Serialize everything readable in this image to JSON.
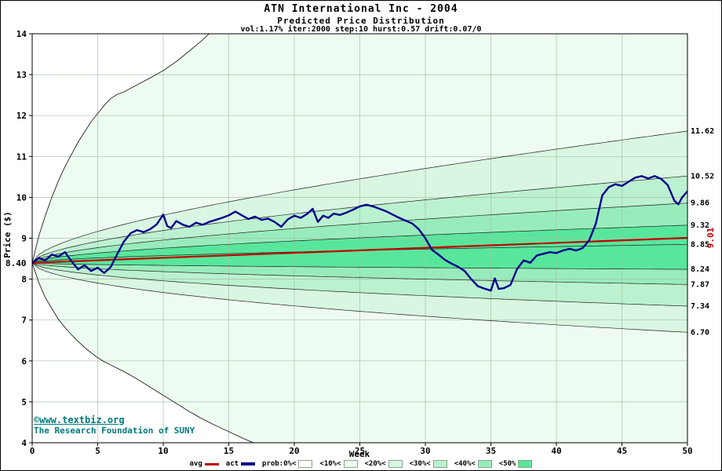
{
  "header": {
    "title": "ATN International Inc - 2004",
    "subtitle": "Predicted Price Distribution",
    "params": "vol:1.17% iter:2000 step:10 hurst:0.57 drift:0.07/0"
  },
  "footer": {
    "copyright": "©www.textbiz.org",
    "org": "The Research Foundation of SUNY"
  },
  "legend": {
    "avg_label": "avg",
    "act_label": "act",
    "prob_labels": [
      "prob:0%<",
      "<10%<",
      "<20%<",
      "<30%<",
      "<40%<",
      "<50%"
    ],
    "avg_color": "#C00000",
    "act_color": "#00008B",
    "band_colors": [
      "#FFFFFF",
      "#EEFBF1",
      "#D8F6E1",
      "#BBF1D0",
      "#98ECBC",
      "#58E69C"
    ]
  },
  "chart_data": {
    "type": "area",
    "subtype": "fan-chart-with-actual-and-average-lines",
    "title": "ATN International Inc - 2004",
    "subtitle": "Predicted Price Distribution",
    "xlabel": "Week",
    "ylabel": "Price ($)",
    "xlim": [
      0,
      50
    ],
    "ylim": [
      4,
      14
    ],
    "xticks": [
      0,
      5,
      10,
      15,
      20,
      25,
      30,
      35,
      40,
      45,
      50
    ],
    "yticks": [
      4,
      5,
      6,
      7,
      8,
      9,
      10,
      11,
      12,
      13,
      14
    ],
    "grid": true,
    "legend_position": "bottom",
    "start_price": 8.4,
    "start_label": "8.40",
    "avg_end": 9.01,
    "avg_end_label": "9.01",
    "hurst_exponent": 0.57,
    "percentile_ends": [
      11.62,
      10.52,
      9.86,
      9.32,
      8.85,
      8.24,
      7.87,
      7.34,
      6.7
    ],
    "right_labels": [
      "11.62",
      "10.52",
      "9.86",
      "9.32",
      "8.85",
      "8.24",
      "7.87",
      "7.34",
      "6.70"
    ],
    "band_pairs": [
      {
        "hi": 11.62,
        "lo": 6.7,
        "color_index": 2
      },
      {
        "hi": 10.52,
        "lo": 7.34,
        "color_index": 3
      },
      {
        "hi": 9.86,
        "lo": 7.87,
        "color_index": 4
      },
      {
        "hi": 9.32,
        "lo": 8.24,
        "color_index": 5
      }
    ],
    "avg_series": [
      [
        0,
        8.4
      ],
      [
        50,
        9.01
      ]
    ],
    "max_envelope": [
      [
        0,
        8.4
      ],
      [
        0.5,
        9.05
      ],
      [
        1,
        9.55
      ],
      [
        1.5,
        10.0
      ],
      [
        2,
        10.4
      ],
      [
        2.5,
        10.75
      ],
      [
        3,
        11.05
      ],
      [
        3.5,
        11.35
      ],
      [
        4,
        11.6
      ],
      [
        4.5,
        11.85
      ],
      [
        5,
        12.05
      ],
      [
        5.5,
        12.25
      ],
      [
        6,
        12.42
      ],
      [
        6.5,
        12.52
      ],
      [
        7,
        12.58
      ],
      [
        8,
        12.75
      ],
      [
        9,
        12.92
      ],
      [
        10,
        13.1
      ],
      [
        11,
        13.32
      ],
      [
        12,
        13.58
      ],
      [
        13,
        13.85
      ],
      [
        14,
        14.15
      ],
      [
        15,
        14.4
      ]
    ],
    "min_envelope": [
      [
        0,
        8.4
      ],
      [
        0.5,
        7.92
      ],
      [
        1,
        7.55
      ],
      [
        1.5,
        7.28
      ],
      [
        2,
        7.02
      ],
      [
        2.5,
        6.82
      ],
      [
        3,
        6.64
      ],
      [
        3.5,
        6.48
      ],
      [
        4,
        6.33
      ],
      [
        4.5,
        6.2
      ],
      [
        5,
        6.08
      ],
      [
        5.5,
        5.98
      ],
      [
        6,
        5.9
      ],
      [
        7,
        5.74
      ],
      [
        8,
        5.56
      ],
      [
        9,
        5.36
      ],
      [
        10,
        5.16
      ],
      [
        11,
        4.96
      ],
      [
        12,
        4.76
      ],
      [
        13,
        4.58
      ],
      [
        14,
        4.42
      ],
      [
        15,
        4.27
      ],
      [
        16,
        4.12
      ],
      [
        17,
        3.98
      ],
      [
        18,
        3.9
      ],
      [
        20,
        3.8
      ]
    ],
    "act_series": [
      [
        0,
        8.4
      ],
      [
        0.5,
        8.52
      ],
      [
        1,
        8.46
      ],
      [
        1.5,
        8.6
      ],
      [
        2,
        8.55
      ],
      [
        2.5,
        8.66
      ],
      [
        3,
        8.44
      ],
      [
        3.5,
        8.24
      ],
      [
        4,
        8.34
      ],
      [
        4.5,
        8.2
      ],
      [
        5,
        8.28
      ],
      [
        5.5,
        8.15
      ],
      [
        6,
        8.3
      ],
      [
        6.5,
        8.62
      ],
      [
        7,
        8.92
      ],
      [
        7.5,
        9.12
      ],
      [
        8,
        9.2
      ],
      [
        8.5,
        9.15
      ],
      [
        9,
        9.22
      ],
      [
        9.5,
        9.34
      ],
      [
        10,
        9.58
      ],
      [
        10.3,
        9.3
      ],
      [
        10.6,
        9.25
      ],
      [
        11,
        9.42
      ],
      [
        11.5,
        9.33
      ],
      [
        12,
        9.28
      ],
      [
        12.5,
        9.38
      ],
      [
        13,
        9.33
      ],
      [
        13.5,
        9.4
      ],
      [
        14,
        9.45
      ],
      [
        14.5,
        9.5
      ],
      [
        15,
        9.56
      ],
      [
        15.5,
        9.65
      ],
      [
        16,
        9.56
      ],
      [
        16.5,
        9.47
      ],
      [
        17,
        9.53
      ],
      [
        17.5,
        9.45
      ],
      [
        18,
        9.48
      ],
      [
        18.5,
        9.4
      ],
      [
        19,
        9.28
      ],
      [
        19.5,
        9.46
      ],
      [
        20,
        9.55
      ],
      [
        20.5,
        9.5
      ],
      [
        21,
        9.6
      ],
      [
        21.4,
        9.72
      ],
      [
        21.8,
        9.4
      ],
      [
        22.2,
        9.55
      ],
      [
        22.6,
        9.5
      ],
      [
        23,
        9.6
      ],
      [
        23.5,
        9.57
      ],
      [
        24,
        9.63
      ],
      [
        24.5,
        9.7
      ],
      [
        25,
        9.78
      ],
      [
        25.5,
        9.82
      ],
      [
        26,
        9.78
      ],
      [
        26.5,
        9.72
      ],
      [
        27,
        9.66
      ],
      [
        27.5,
        9.58
      ],
      [
        28,
        9.5
      ],
      [
        28.5,
        9.43
      ],
      [
        29,
        9.36
      ],
      [
        29.5,
        9.22
      ],
      [
        30,
        9.0
      ],
      [
        30.5,
        8.72
      ],
      [
        31,
        8.6
      ],
      [
        31.5,
        8.47
      ],
      [
        32,
        8.38
      ],
      [
        32.5,
        8.3
      ],
      [
        33,
        8.2
      ],
      [
        33.5,
        8.0
      ],
      [
        34,
        7.83
      ],
      [
        34.5,
        7.77
      ],
      [
        35,
        7.72
      ],
      [
        35.3,
        8.02
      ],
      [
        35.6,
        7.76
      ],
      [
        36,
        7.78
      ],
      [
        36.5,
        7.86
      ],
      [
        37,
        8.25
      ],
      [
        37.5,
        8.46
      ],
      [
        38,
        8.4
      ],
      [
        38.5,
        8.58
      ],
      [
        39,
        8.62
      ],
      [
        39.5,
        8.66
      ],
      [
        40,
        8.64
      ],
      [
        40.5,
        8.7
      ],
      [
        41,
        8.74
      ],
      [
        41.5,
        8.7
      ],
      [
        42,
        8.76
      ],
      [
        42.5,
        8.95
      ],
      [
        43,
        9.35
      ],
      [
        43.5,
        10.05
      ],
      [
        44,
        10.25
      ],
      [
        44.5,
        10.32
      ],
      [
        45,
        10.28
      ],
      [
        45.5,
        10.38
      ],
      [
        46,
        10.48
      ],
      [
        46.5,
        10.52
      ],
      [
        47,
        10.46
      ],
      [
        47.5,
        10.52
      ],
      [
        48,
        10.45
      ],
      [
        48.5,
        10.3
      ],
      [
        49,
        9.92
      ],
      [
        49.3,
        9.83
      ],
      [
        49.6,
        10.0
      ],
      [
        50,
        10.15
      ]
    ]
  }
}
